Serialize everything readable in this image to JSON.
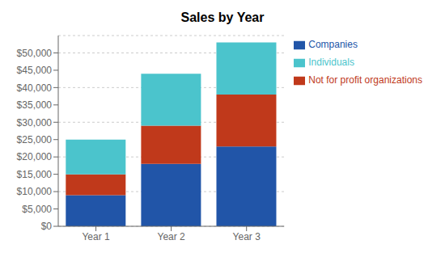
{
  "chart_data": {
    "type": "bar",
    "title": "Sales by Year",
    "categories": [
      "Year 1",
      "Year 2",
      "Year 3"
    ],
    "series": [
      {
        "name": "Companies",
        "color": "#2155A8",
        "values": [
          9000,
          18000,
          23000
        ]
      },
      {
        "name": "Not for profit organizations",
        "color": "#C0391B",
        "values": [
          6000,
          11000,
          15000
        ]
      },
      {
        "name": "Individuals",
        "color": "#4BC4CC",
        "values": [
          10000,
          15000,
          15000
        ]
      }
    ],
    "stacked": true,
    "ylim": [
      0,
      55000
    ],
    "yticks": [
      {
        "value": 0,
        "label": "$0"
      },
      {
        "value": 5000,
        "label": "$5,000"
      },
      {
        "value": 10000,
        "label": "$10,000"
      },
      {
        "value": 15000,
        "label": "$15,000"
      },
      {
        "value": 20000,
        "label": "$20,000"
      },
      {
        "value": 25000,
        "label": "$25,000"
      },
      {
        "value": 30000,
        "label": "$30,000"
      },
      {
        "value": 35000,
        "label": "$35,000"
      },
      {
        "value": 40000,
        "label": "$40,000"
      },
      {
        "value": 45000,
        "label": "$45,000"
      },
      {
        "value": 50000,
        "label": "$50,000"
      }
    ],
    "grid": true,
    "legend": "right"
  }
}
